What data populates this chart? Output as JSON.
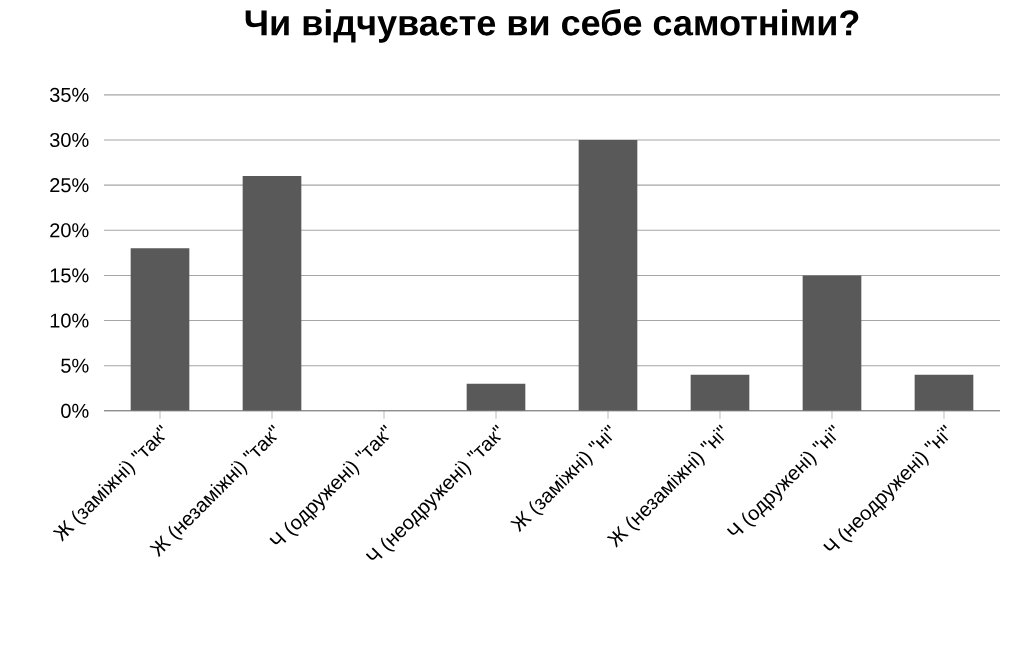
{
  "chart_data": {
    "type": "bar",
    "title": "Чи відчуваєте ви себе самотніми?",
    "categories": [
      "Ж (заміжні) \"так\"",
      "Ж (незаміжні) \"так\"",
      "Ч (одружені) \"так\"",
      "Ч (неодружені) \"так\"",
      "Ж (заміжні) \"ні\"",
      "Ж (незаміжні) \"ні\"",
      "Ч (одружені) \"ні\"",
      "Ч (неодружені) \"ні\""
    ],
    "values": [
      18,
      26,
      0,
      3,
      30,
      4,
      15,
      4
    ],
    "color": "#595959",
    "ylim": [
      0,
      35
    ],
    "yticks": [
      {
        "value": 0,
        "label": "0%"
      },
      {
        "value": 5,
        "label": "5%"
      },
      {
        "value": 10,
        "label": "10%"
      },
      {
        "value": 15,
        "label": "15%"
      },
      {
        "value": 20,
        "label": "20%"
      },
      {
        "value": 25,
        "label": "25%"
      },
      {
        "value": 30,
        "label": "30%"
      },
      {
        "value": 35,
        "label": "35%"
      }
    ],
    "grid": true
  }
}
